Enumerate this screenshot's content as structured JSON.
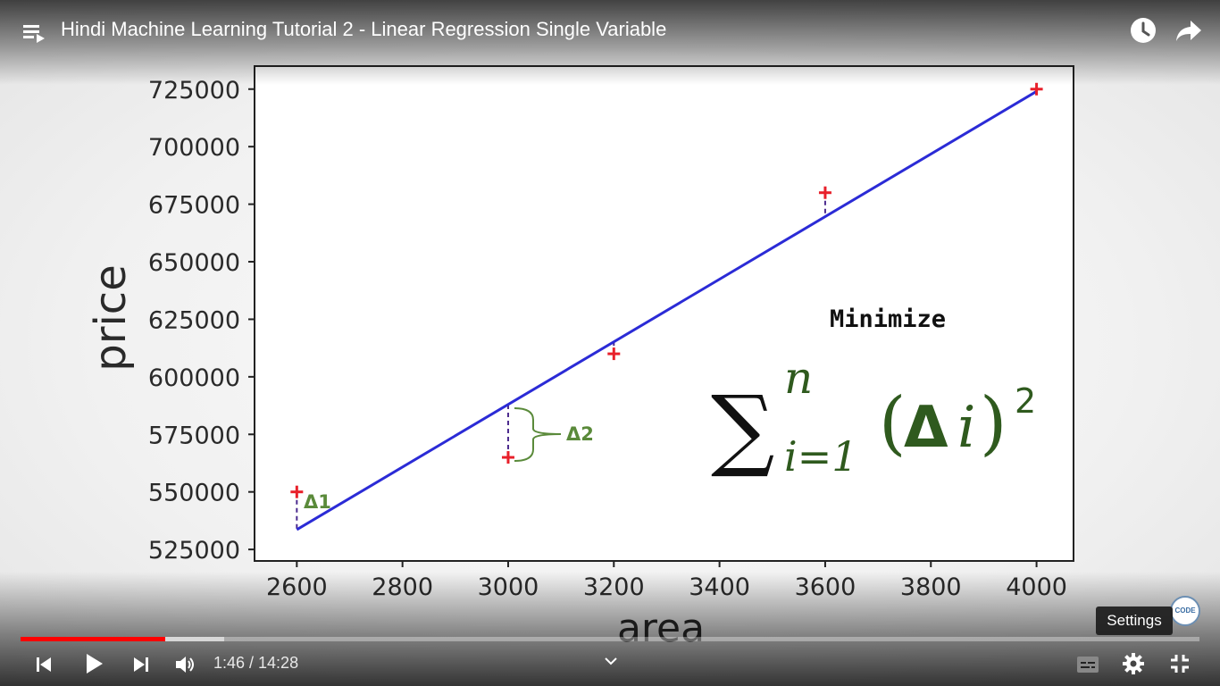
{
  "player": {
    "title": "Hindi Machine Learning Tutorial 2 - Linear Regression Single Variable",
    "time_display": "1:46 / 14:28",
    "played_fraction": 0.1225,
    "buffered_fraction": 0.1725,
    "tooltip": "Settings",
    "channel_logo": "CODE",
    "icons": {
      "playlist": "playlist-icon",
      "watch_later": "clock-icon",
      "share": "share-icon",
      "prev": "previous-icon",
      "play": "play-icon",
      "next": "next-icon",
      "volume": "volume-icon",
      "chevron": "chevron-down-icon",
      "captions": "captions-icon",
      "settings": "gear-icon",
      "exit_fullscreen": "exit-fullscreen-icon"
    },
    "colors": {
      "progress_played": "#ff0000"
    }
  },
  "chart_data": {
    "type": "scatter",
    "xlabel": "area",
    "ylabel": "price",
    "xlim": [
      2520,
      4070
    ],
    "ylim": [
      520000,
      735000
    ],
    "x_ticks": [
      2600,
      2800,
      3000,
      3200,
      3400,
      3600,
      3800,
      4000
    ],
    "x_tick_labels": [
      "2600",
      "2800",
      "3000",
      "3200",
      "3400",
      "3600",
      "3800",
      "4000"
    ],
    "y_ticks": [
      525000,
      550000,
      575000,
      600000,
      625000,
      650000,
      675000,
      700000,
      725000
    ],
    "y_tick_labels": [
      "525000",
      "550000",
      "575000",
      "600000",
      "625000",
      "650000",
      "675000",
      "700000",
      "725000"
    ],
    "points": {
      "x": [
        2600,
        3000,
        3200,
        3600,
        4000
      ],
      "y": [
        550000,
        565000,
        610000,
        680000,
        725000
      ],
      "marker": "+",
      "color": "#e8202a"
    },
    "line": {
      "x": [
        2600,
        4000
      ],
      "y": [
        533600,
        724000
      ],
      "color": "#2b2bd6"
    },
    "residual_color": "#4b2a8e",
    "annotation_color": "#5a8a3a",
    "annotations": {
      "delta1": "Δ1",
      "delta2": "Δ2"
    },
    "formula": {
      "heading": "Minimize",
      "sum_symbol": "∑",
      "superscript": "n",
      "subscript": "i=1",
      "open_paren": "(",
      "delta": "Δ",
      "index": "i",
      "close_paren": ")",
      "exponent": "2",
      "color": "#2f5a1e"
    },
    "grid": false
  }
}
